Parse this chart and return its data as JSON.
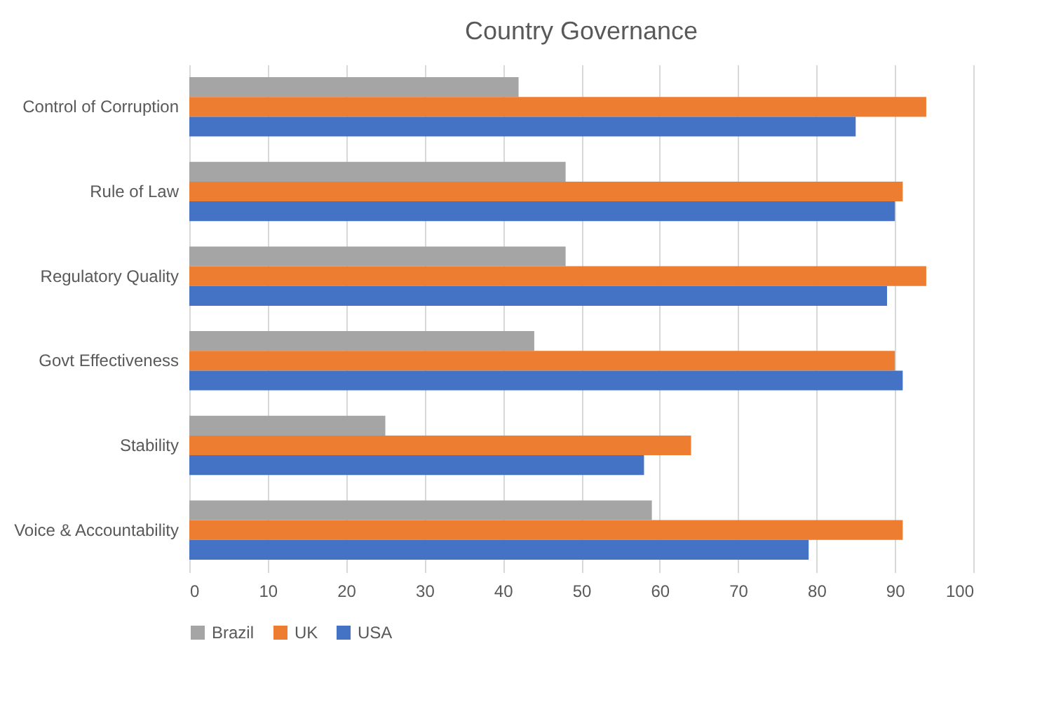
{
  "chart_data": {
    "type": "bar",
    "orientation": "horizontal",
    "title": "Country Governance",
    "categories": [
      "Control of Corruption",
      "Rule of Law",
      "Regulatory Quality",
      "Govt Effectiveness",
      "Stability",
      "Voice & Accountability"
    ],
    "series": [
      {
        "name": "Brazil",
        "color": "#a5a5a5",
        "values": [
          42,
          48,
          48,
          44,
          25,
          59
        ]
      },
      {
        "name": "UK",
        "color": "#ed7d31",
        "values": [
          94,
          91,
          94,
          90,
          64,
          91
        ]
      },
      {
        "name": "USA",
        "color": "#4472c4",
        "values": [
          85,
          90,
          89,
          91,
          58,
          79
        ]
      }
    ],
    "xlim": [
      0,
      100
    ],
    "xticks": [
      0,
      10,
      20,
      30,
      40,
      50,
      60,
      70,
      80,
      90,
      100
    ],
    "grid": "x",
    "legend": "bottom"
  }
}
